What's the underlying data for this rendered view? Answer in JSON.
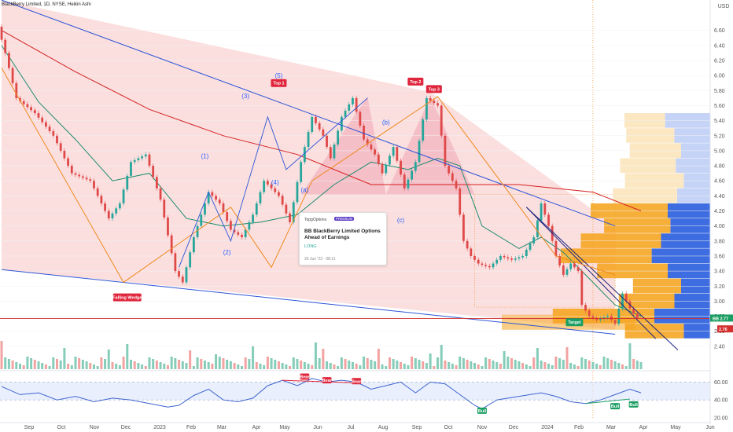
{
  "header": {
    "title": "BlackBerry Limited, 1D, NYSE, Heikin Ashi"
  },
  "idea_card": {
    "source": "TopgOptions",
    "badge": "PREMIUM",
    "title": "BB BlackBerry Limited Options Ahead of Earnings",
    "direction": "LONG",
    "date": "26 Jun '23 · 08:11"
  },
  "chart_data": {
    "type": "line",
    "currency": "USD",
    "x_ticks": [
      "Sep",
      "Oct",
      "Nov",
      "Dec",
      "2023",
      "Feb",
      "Mar",
      "Apr",
      "May",
      "Jun",
      "Jul",
      "Aug",
      "Sep",
      "Oct",
      "Nov",
      "Dec",
      "2024",
      "Feb",
      "Mar",
      "Apr",
      "May",
      "Jun"
    ],
    "y_ticks": [
      "6.60",
      "6.40",
      "6.20",
      "6.00",
      "5.80",
      "5.60",
      "5.40",
      "5.20",
      "5.00",
      "4.80",
      "4.60",
      "4.40",
      "4.20",
      "4.00",
      "3.80",
      "3.60",
      "3.40",
      "3.20",
      "3.00",
      "2.80",
      "2.60",
      "2.40"
    ],
    "ylim": [
      2.2,
      6.9
    ],
    "last_price_label": "BB",
    "last_price": "2.77",
    "price_label_2": "2.76",
    "oscillator_ticks": [
      "60.00",
      "40.00",
      "20.00"
    ],
    "annotations": {
      "falling_wedge": "Falling Wedge",
      "top1": "Top 1",
      "top2": "Top 2",
      "top3": "Top 3",
      "target": "Target",
      "wave1": "(1)",
      "wave2": "(2)",
      "wave3": "(3)",
      "wave4": "(4)",
      "wave5": "(5)",
      "wave_a": "(a)",
      "wave_b": "(b)",
      "wave_c": "(c)",
      "bear": "Bear",
      "bull": "Bull"
    },
    "series": [
      {
        "name": "price",
        "points": [
          [
            0,
            6.65
          ],
          [
            2,
            6.3
          ],
          [
            5,
            5.7
          ],
          [
            10,
            5.5
          ],
          [
            15,
            5.2
          ],
          [
            20,
            4.7
          ],
          [
            25,
            4.6
          ],
          [
            30,
            4.1
          ],
          [
            33,
            4.3
          ],
          [
            36,
            4.85
          ],
          [
            40,
            4.95
          ],
          [
            44,
            4.35
          ],
          [
            48,
            3.4
          ],
          [
            50,
            3.25
          ],
          [
            53,
            3.85
          ],
          [
            57,
            4.45
          ],
          [
            60,
            4.3
          ],
          [
            63,
            3.95
          ],
          [
            66,
            3.85
          ],
          [
            69,
            4.15
          ],
          [
            72,
            4.6
          ],
          [
            76,
            4.4
          ],
          [
            79,
            4.05
          ],
          [
            82,
            4.85
          ],
          [
            85,
            5.45
          ],
          [
            88,
            5.2
          ],
          [
            90,
            4.9
          ],
          [
            93,
            5.45
          ],
          [
            96,
            5.7
          ],
          [
            99,
            5.15
          ],
          [
            102,
            4.95
          ],
          [
            104,
            4.7
          ],
          [
            107,
            5.05
          ],
          [
            110,
            4.5
          ],
          [
            113,
            4.85
          ],
          [
            116,
            5.7
          ],
          [
            119,
            5.6
          ],
          [
            121,
            4.8
          ],
          [
            124,
            4.5
          ],
          [
            126,
            3.8
          ],
          [
            128,
            3.6
          ],
          [
            130,
            3.5
          ],
          [
            133,
            3.45
          ],
          [
            136,
            3.6
          ],
          [
            139,
            3.55
          ],
          [
            142,
            3.6
          ],
          [
            145,
            3.85
          ],
          [
            147,
            4.3
          ],
          [
            149,
            4.0
          ],
          [
            151,
            3.6
          ],
          [
            153,
            3.35
          ],
          [
            155,
            3.5
          ],
          [
            157,
            3.4
          ],
          [
            158,
            2.95
          ],
          [
            160,
            2.8
          ],
          [
            162,
            2.75
          ],
          [
            165,
            2.8
          ],
          [
            167,
            2.7
          ],
          [
            169,
            3.1
          ],
          [
            171,
            2.9
          ],
          [
            173,
            2.77
          ]
        ]
      },
      {
        "name": "sma_fast",
        "points": [
          [
            0,
            6.4
          ],
          [
            10,
            5.65
          ],
          [
            20,
            5.15
          ],
          [
            30,
            4.6
          ],
          [
            40,
            4.7
          ],
          [
            50,
            4.1
          ],
          [
            60,
            4.0
          ],
          [
            70,
            4.05
          ],
          [
            80,
            4.15
          ],
          [
            90,
            4.55
          ],
          [
            100,
            4.85
          ],
          [
            110,
            4.75
          ],
          [
            118,
            4.9
          ],
          [
            124,
            4.8
          ],
          [
            130,
            4.0
          ],
          [
            140,
            3.7
          ],
          [
            146,
            3.85
          ],
          [
            152,
            3.65
          ],
          [
            158,
            3.35
          ],
          [
            166,
            2.95
          ],
          [
            173,
            2.8
          ]
        ]
      },
      {
        "name": "sma_slow",
        "points": [
          [
            0,
            6.6
          ],
          [
            20,
            6.05
          ],
          [
            40,
            5.55
          ],
          [
            60,
            5.2
          ],
          [
            80,
            4.95
          ],
          [
            100,
            4.55
          ],
          [
            120,
            4.55
          ],
          [
            140,
            4.55
          ],
          [
            160,
            4.45
          ],
          [
            173,
            4.2
          ]
        ]
      }
    ],
    "oscillator": {
      "ylim": [
        20,
        70
      ],
      "points": [
        [
          0,
          55
        ],
        [
          5,
          46
        ],
        [
          10,
          48
        ],
        [
          15,
          40
        ],
        [
          20,
          44
        ],
        [
          25,
          38
        ],
        [
          30,
          42
        ],
        [
          35,
          40
        ],
        [
          40,
          36
        ],
        [
          45,
          32
        ],
        [
          48,
          34
        ],
        [
          52,
          45
        ],
        [
          56,
          52
        ],
        [
          60,
          40
        ],
        [
          64,
          38
        ],
        [
          68,
          42
        ],
        [
          72,
          56
        ],
        [
          76,
          62
        ],
        [
          80,
          56
        ],
        [
          84,
          64
        ],
        [
          88,
          60
        ],
        [
          92,
          62
        ],
        [
          96,
          60
        ],
        [
          100,
          52
        ],
        [
          104,
          56
        ],
        [
          108,
          60
        ],
        [
          112,
          48
        ],
        [
          116,
          60
        ],
        [
          120,
          58
        ],
        [
          124,
          46
        ],
        [
          128,
          34
        ],
        [
          130,
          30
        ],
        [
          134,
          40
        ],
        [
          140,
          44
        ],
        [
          146,
          48
        ],
        [
          150,
          44
        ],
        [
          154,
          38
        ],
        [
          158,
          36
        ],
        [
          162,
          40
        ],
        [
          166,
          46
        ],
        [
          170,
          52
        ],
        [
          173,
          48
        ]
      ]
    }
  },
  "colors": {
    "price": "#c00000",
    "sma_fast": "#1e8c6e",
    "sma_slow": "#d42020",
    "wedge_fill": "#fbdcdc",
    "pattern_fill": "#f4b6c2",
    "blue_trend": "#2d55d6",
    "orange_trend": "#ef8a1e",
    "navy_trend": "#1a237e",
    "oscillator": "#3e64cf",
    "osc_band": "#dfe8fb",
    "tag_red": "#e0263c",
    "tag_green": "#1b9e63",
    "vp_blue": "#3d6de0",
    "vp_blue_light": "#c5d3f7",
    "vp_orange": "#f5a623",
    "vp_orange_light": "#fbe6bd"
  }
}
